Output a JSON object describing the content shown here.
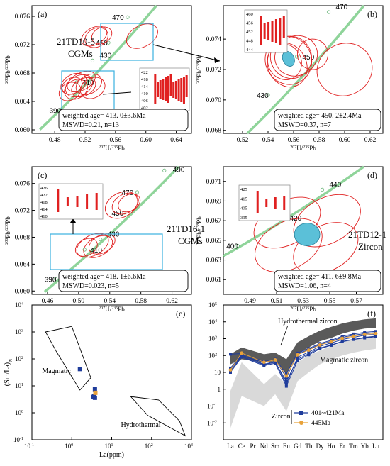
{
  "chart_data": [
    {
      "panel": "(a)",
      "type": "scatter",
      "xlabel": "207U/235Pb",
      "ylabel": "206Pb/238Pb",
      "xlim": [
        0.45,
        0.66
      ],
      "ylim": [
        0.0595,
        0.0775
      ],
      "xticks": [
        "0.48",
        "0.52",
        "0.56",
        "0.60",
        "0.64"
      ],
      "yticks": [
        "0.060",
        "0.064",
        "0.068",
        "0.072",
        "0.076"
      ],
      "concordia_labels": [
        "390",
        "410",
        "430",
        "450",
        "470"
      ],
      "sample": "21TD10-5",
      "sample_type": "CGMs",
      "weighted_age": "weighted age= 413. 0±3.6Ma",
      "mswd": "MSWD=0.21, n=13",
      "inset": {
        "yticks": [
          "422",
          "418",
          "414",
          "410",
          "406",
          "402"
        ]
      },
      "ellipses": [
        {
          "x": 0.532,
          "y": 0.0732,
          "rx": 0.018,
          "ry": 0.0012
        },
        {
          "x": 0.535,
          "y": 0.073,
          "rx": 0.016,
          "ry": 0.0013
        },
        {
          "x": 0.542,
          "y": 0.0733,
          "rx": 0.014,
          "ry": 0.0011
        },
        {
          "x": 0.595,
          "y": 0.0732,
          "rx": 0.022,
          "ry": 0.0015
        },
        {
          "x": 0.505,
          "y": 0.0665,
          "rx": 0.018,
          "ry": 0.0013
        },
        {
          "x": 0.512,
          "y": 0.0662,
          "rx": 0.019,
          "ry": 0.0014
        },
        {
          "x": 0.518,
          "y": 0.066,
          "rx": 0.017,
          "ry": 0.0012
        },
        {
          "x": 0.508,
          "y": 0.0657,
          "rx": 0.016,
          "ry": 0.0013
        },
        {
          "x": 0.525,
          "y": 0.0664,
          "rx": 0.018,
          "ry": 0.0013
        },
        {
          "x": 0.5,
          "y": 0.0654,
          "rx": 0.015,
          "ry": 0.0012
        },
        {
          "x": 0.515,
          "y": 0.0668,
          "rx": 0.02,
          "ry": 0.0012
        },
        {
          "x": 0.53,
          "y": 0.0659,
          "rx": 0.017,
          "ry": 0.0014
        },
        {
          "x": 0.503,
          "y": 0.0662,
          "rx": 0.014,
          "ry": 0.0011
        }
      ]
    },
    {
      "panel": "(b)",
      "type": "scatter",
      "xlabel": "207U/235Pb",
      "ylabel": "206Pb/238Pb",
      "xlim": [
        0.505,
        0.63
      ],
      "ylim": [
        0.0678,
        0.0762
      ],
      "xticks": [
        "0.52",
        "0.54",
        "0.56",
        "0.58",
        "0.60",
        "0.62"
      ],
      "yticks": [
        "0.068",
        "0.070",
        "0.072",
        "0.074"
      ],
      "concordia_labels": [
        "430",
        "450",
        "470"
      ],
      "weighted_age": "weighted age= 450. 2±2.4Ma",
      "mswd": "MSWD=0.37, n=7",
      "inset": {
        "yticks": [
          "460",
          "456",
          "452",
          "448",
          "444"
        ]
      },
      "ellipses": [
        {
          "x": 0.556,
          "y": 0.0726,
          "rx": 0.018,
          "ry": 0.0016
        },
        {
          "x": 0.558,
          "y": 0.0728,
          "rx": 0.016,
          "ry": 0.0014
        },
        {
          "x": 0.555,
          "y": 0.0723,
          "rx": 0.015,
          "ry": 0.0015
        },
        {
          "x": 0.562,
          "y": 0.0729,
          "rx": 0.017,
          "ry": 0.0013
        },
        {
          "x": 0.553,
          "y": 0.0725,
          "rx": 0.013,
          "ry": 0.0012
        },
        {
          "x": 0.575,
          "y": 0.073,
          "rx": 0.012,
          "ry": 0.001
        },
        {
          "x": 0.6,
          "y": 0.072,
          "rx": 0.022,
          "ry": 0.0017
        }
      ]
    },
    {
      "panel": "(c)",
      "type": "scatter",
      "xlabel": "207U/235Pb",
      "ylabel": "206Pb/238Pb",
      "xlim": [
        0.44,
        0.645
      ],
      "ylim": [
        0.0595,
        0.0785
      ],
      "xticks": [
        "0.46",
        "0.50",
        "0.54",
        "0.58",
        "0.62"
      ],
      "yticks": [
        "0.060",
        "0.064",
        "0.068",
        "0.072",
        "0.076"
      ],
      "concordia_labels": [
        "390",
        "410",
        "430",
        "450",
        "470",
        "490"
      ],
      "sample": "21TD16-1",
      "sample_type": "CGMs",
      "weighted_age": "weighted age= 418. 1±6.6Ma",
      "mswd": "MSWD=0.023, n=5",
      "inset": {
        "yticks": [
          "426",
          "422",
          "418",
          "414",
          "410"
        ]
      },
      "ellipses": [
        {
          "x": 0.555,
          "y": 0.0728,
          "rx": 0.022,
          "ry": 0.0018
        },
        {
          "x": 0.56,
          "y": 0.073,
          "rx": 0.018,
          "ry": 0.0014
        },
        {
          "x": 0.565,
          "y": 0.0731,
          "rx": 0.015,
          "ry": 0.0012
        },
        {
          "x": 0.518,
          "y": 0.0668,
          "rx": 0.022,
          "ry": 0.0015
        },
        {
          "x": 0.525,
          "y": 0.0666,
          "rx": 0.02,
          "ry": 0.0014
        },
        {
          "x": 0.53,
          "y": 0.067,
          "rx": 0.018,
          "ry": 0.0013
        },
        {
          "x": 0.51,
          "y": 0.0665,
          "rx": 0.015,
          "ry": 0.0012
        }
      ]
    },
    {
      "panel": "(d)",
      "type": "scatter",
      "xlabel": "207U/235Pb",
      "ylabel": "206Pb/238Pb",
      "xlim": [
        0.47,
        0.59
      ],
      "ylim": [
        0.0595,
        0.0725
      ],
      "xticks": [
        "0.49",
        "0.51",
        "0.53",
        "0.55",
        "0.57"
      ],
      "yticks": [
        "0.061",
        "0.063",
        "0.065",
        "0.067",
        "0.069",
        "0.071"
      ],
      "concordia_labels": [
        "400",
        "420",
        "440"
      ],
      "sample": "21TD12-1",
      "sample_type": "Zircon",
      "weighted_age": "weighted age= 411. 6±9.8Ma",
      "mswd": "MSWD=1.06, n=4",
      "inset": {
        "yticks": [
          "425",
          "415",
          "405",
          "395"
        ]
      },
      "ellipses": [
        {
          "x": 0.518,
          "y": 0.0668,
          "rx": 0.027,
          "ry": 0.0022
        },
        {
          "x": 0.548,
          "y": 0.067,
          "rx": 0.027,
          "ry": 0.0023
        },
        {
          "x": 0.519,
          "y": 0.0645,
          "rx": 0.027,
          "ry": 0.0024
        },
        {
          "x": 0.547,
          "y": 0.0642,
          "rx": 0.026,
          "ry": 0.0023
        }
      ]
    },
    {
      "panel": "(e)",
      "type": "scatter",
      "xlabel": "La(ppm)",
      "ylabel": "(Sm/La)N",
      "xscale": "log",
      "yscale": "log",
      "xlim": [
        0.1,
        1000
      ],
      "ylim": [
        0.1,
        10000
      ],
      "xticks": [
        "10-1",
        "100",
        "101",
        "102",
        "103"
      ],
      "yticks": [
        "10-1",
        "100",
        "101",
        "102",
        "103",
        "104"
      ],
      "fields": [
        "Magmatic",
        "Hydrothermal"
      ],
      "points_401_421": [
        [
          1.6,
          42
        ],
        [
          3.6,
          4.2
        ],
        [
          3.8,
          7.5
        ],
        [
          3.4,
          3.8
        ],
        [
          3.8,
          3.6
        ]
      ],
      "points_445": [
        [
          3.9,
          5.5
        ]
      ]
    },
    {
      "panel": "(f)",
      "type": "line",
      "ylabel": "Sample/Chondrite",
      "yscale": "log",
      "ylim": [
        0.001,
        100000
      ],
      "yticks": [
        "10-2",
        "10-1",
        "1",
        "10",
        "102",
        "103",
        "104",
        "105"
      ],
      "categories": [
        "La",
        "Ce",
        "Pr",
        "Nd",
        "Sm",
        "Eu",
        "Gd",
        "Tb",
        "Dy",
        "Ho",
        "Er",
        "Tm",
        "Yb",
        "Lu"
      ],
      "fields": [
        "Hydrothermal zircon",
        "Magmatic zircon"
      ],
      "legend_title": "Zircon",
      "series": [
        {
          "name": "401~421Ma",
          "color": "#1f3c9b",
          "values": [
            [
              12,
              90,
              null,
              28,
              40,
              3,
              60,
              130,
              280,
              420,
              700,
              900,
              1200,
              1400
            ],
            [
              18,
              110,
              null,
              30,
              45,
              2,
              80,
              160,
              350,
              550,
              900,
              1200,
              1600,
              1800
            ],
            [
              120,
              130,
              null,
              45,
              55,
              5,
              120,
              230,
              450,
              700,
              1200,
              1600,
              2000,
              2300
            ],
            [
              10,
              80,
              null,
              25,
              35,
              1.5,
              50,
              110,
              250,
              400,
              650,
              900,
              1100,
              1300
            ],
            [
              15,
              100,
              null,
              38,
              60,
              8,
              140,
              260,
              520,
              800,
              1400,
              1900,
              2400,
              2700
            ]
          ]
        },
        {
          "name": "445Ma",
          "color": "#e8a23a",
          "values": [
            [
              14,
              140,
              null,
              40,
              55,
              6,
              110,
              210,
              420,
              650,
              1050,
              1400,
              1800,
              2000
            ]
          ]
        }
      ]
    }
  ]
}
